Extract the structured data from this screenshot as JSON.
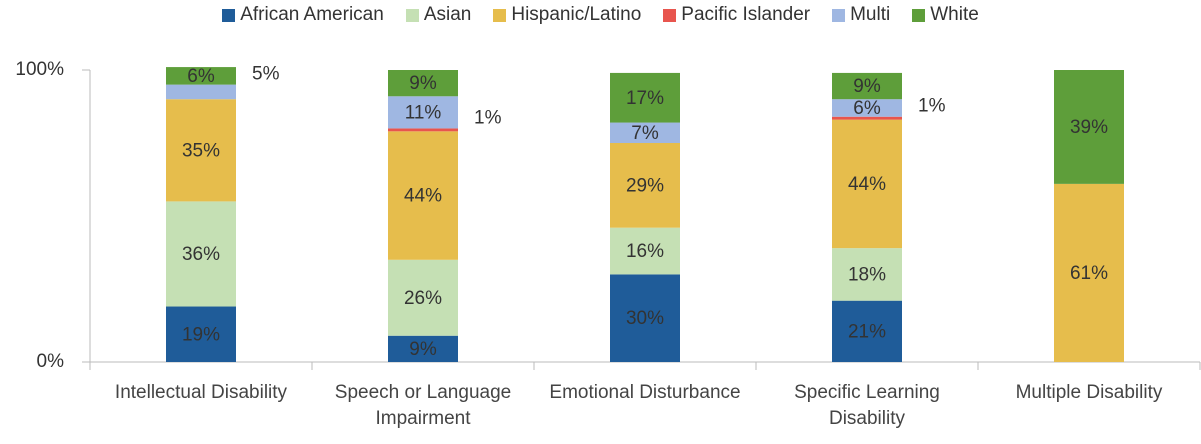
{
  "chart_data": {
    "type": "stacked-bar",
    "categories": [
      "Intellectual Disability",
      "Speech or Language Impairment",
      "Emotional Disturbance",
      "Specific Learning Disability",
      "Multiple Disability"
    ],
    "series": [
      {
        "name": "African American",
        "color": "#1f5c99",
        "values": [
          19,
          9,
          30,
          21,
          0
        ],
        "value_labels": [
          "19%",
          "9%",
          "30%",
          "21%",
          null
        ]
      },
      {
        "name": "Asian",
        "color": "#c5e0b4",
        "values": [
          36,
          26,
          16,
          18,
          0
        ],
        "value_labels": [
          "36%",
          "26%",
          "16%",
          "18%",
          null
        ]
      },
      {
        "name": "Hispanic/Latino",
        "color": "#e6bd4c",
        "values": [
          35,
          44,
          29,
          44,
          61
        ],
        "value_labels": [
          "35%",
          "44%",
          "29%",
          "44%",
          "61%"
        ]
      },
      {
        "name": "Pacific Islander",
        "color": "#e8554e",
        "values": [
          0,
          1,
          0,
          1,
          0
        ],
        "value_labels": [
          null,
          "1%",
          null,
          "1%",
          null
        ]
      },
      {
        "name": "Multi",
        "color": "#9fb7e2",
        "values": [
          5,
          11,
          7,
          6,
          0
        ],
        "value_labels": [
          "5%",
          "11%",
          "7%",
          "6%",
          null
        ]
      },
      {
        "name": "White",
        "color": "#5e9e3a",
        "values": [
          6,
          9,
          17,
          9,
          39
        ],
        "value_labels": [
          "6%",
          "9%",
          "17%",
          "9%",
          "39%"
        ]
      }
    ],
    "ylim": [
      0,
      100
    ],
    "yticks": [
      {
        "value": 0,
        "label": "0%"
      },
      {
        "value": 100,
        "label": "100%"
      }
    ],
    "legend": "top"
  }
}
